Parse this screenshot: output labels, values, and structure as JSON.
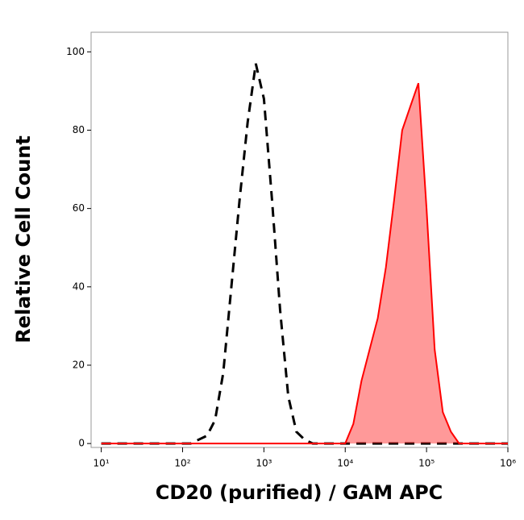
{
  "chart_data": {
    "type": "histogram",
    "x_label": "CD20 (purified) / GAM APC",
    "y_label": "Relative Cell Count",
    "xscale": "log",
    "xlim": [
      7.5,
      1000000
    ],
    "ylim": [
      -1,
      105
    ],
    "xticks": [
      {
        "value": 10,
        "label": "10¹"
      },
      {
        "value": 100,
        "label": "10²"
      },
      {
        "value": 1000,
        "label": "10³"
      },
      {
        "value": 10000,
        "label": "10⁴"
      },
      {
        "value": 100000,
        "label": "10⁵"
      },
      {
        "value": 1000000,
        "label": "10⁶"
      }
    ],
    "yticks": [
      0,
      20,
      40,
      60,
      80,
      100
    ],
    "x": [
      10,
      12.6,
      15.8,
      20,
      25.1,
      31.6,
      39.8,
      50.1,
      63.1,
      79.4,
      100,
      126,
      158,
      200,
      251,
      316,
      398,
      501,
      631,
      794,
      1000,
      1259,
      1585,
      1995,
      2512,
      3162,
      3981,
      5012,
      6310,
      7943,
      10000,
      12589,
      15849,
      19953,
      25119,
      31623,
      39811,
      50119,
      63096,
      79433,
      100000,
      125893,
      158489,
      199526,
      251189,
      316228,
      398107,
      501187,
      630957,
      794328,
      1000000
    ],
    "series": [
      {
        "color": "#000000",
        "dashed": true,
        "fill": false,
        "values": [
          0,
          0,
          0,
          0,
          0,
          0,
          0,
          0,
          0,
          0,
          0,
          0,
          1,
          2,
          6,
          18,
          40,
          62,
          82,
          97,
          88,
          62,
          34,
          12,
          3,
          1,
          0,
          0,
          0,
          0,
          0,
          0,
          0,
          0,
          0,
          0,
          0,
          0,
          0,
          0,
          0,
          0,
          0,
          0,
          0,
          0,
          0,
          0,
          0,
          0,
          0
        ]
      },
      {
        "color": "#ff0000",
        "dashed": false,
        "fill": true,
        "values": [
          0,
          0,
          0,
          0,
          0,
          0,
          0,
          0,
          0,
          0,
          0,
          0,
          0,
          0,
          0,
          0,
          0,
          0,
          0,
          0,
          0,
          0,
          0,
          0,
          0,
          0,
          0,
          0,
          0,
          0,
          0,
          5,
          16,
          24,
          32,
          45,
          62,
          80,
          86,
          92,
          60,
          24,
          8,
          3,
          0,
          0,
          0,
          0,
          0,
          0,
          0
        ]
      }
    ]
  }
}
